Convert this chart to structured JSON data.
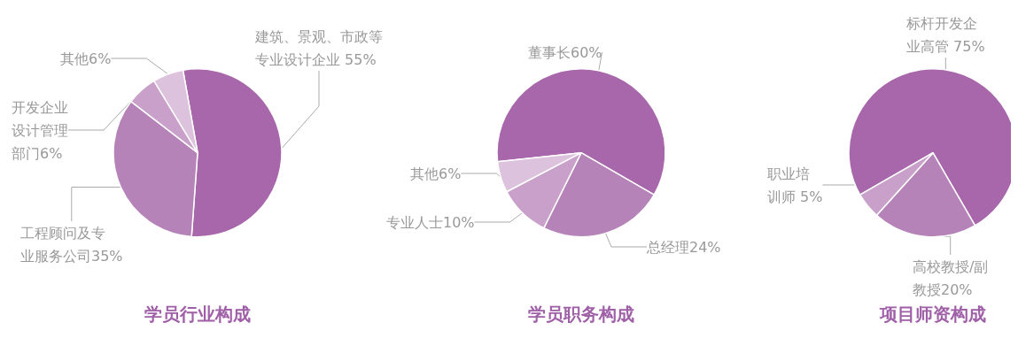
{
  "chart_data": [
    {
      "type": "pie",
      "title": "学员行业构成",
      "categories": [
        "建筑、景观、市政等专业设计企业",
        "工程顾问及专业服务公司",
        "开发企业设计管理部门",
        "其他"
      ],
      "values": [
        55,
        35,
        6,
        6
      ],
      "value_labels": [
        " 55%",
        "35%",
        "6%",
        "6%"
      ],
      "colors": [
        "#a866ab",
        "#b583b8",
        "#c9a0c9",
        "#dcc2dc"
      ],
      "legend": false
    },
    {
      "type": "pie",
      "title": "学员职务构成",
      "categories": [
        "董事长",
        "总经理",
        "专业人士",
        "其他"
      ],
      "values": [
        60,
        24,
        10,
        6
      ],
      "value_labels": [
        "60%",
        "24%",
        "10%",
        "6%"
      ],
      "colors": [
        "#a866ab",
        "#b583b8",
        "#c9a0c9",
        "#dcc2dc"
      ],
      "legend": false
    },
    {
      "type": "pie",
      "title": "项目师资构成",
      "categories": [
        "标杆开发企业高管",
        "高校教授/副教授",
        "职业培训师"
      ],
      "values": [
        75,
        20,
        5
      ],
      "value_labels": [
        " 75%",
        "20%",
        " 5%"
      ],
      "colors": [
        "#a866ab",
        "#b583b8",
        "#c9a0c9"
      ],
      "legend": false
    }
  ]
}
